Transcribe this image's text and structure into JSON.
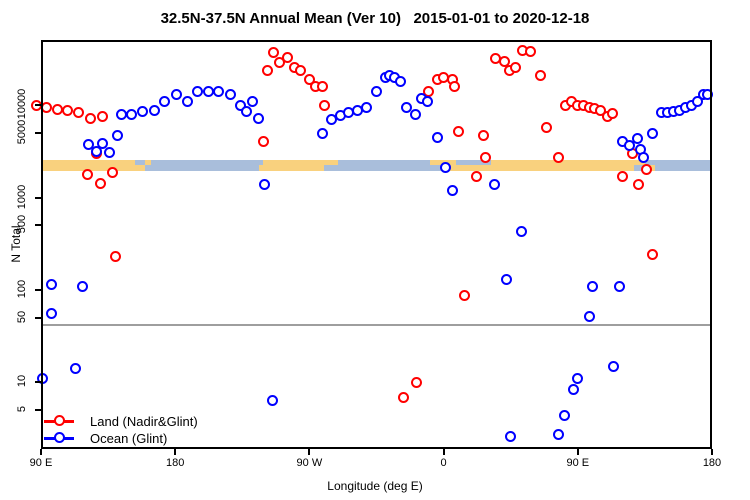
{
  "title": "32.5N-37.5N Annual Mean (Ver 10)   2015-01-01 to 2020-12-18",
  "axes": {
    "y_label": "N Total",
    "x_label": "Longitude (deg E)"
  },
  "legend": {
    "items": [
      {
        "series": "land",
        "label": "Land (Nadir&Glint)"
      },
      {
        "series": "ocean",
        "label": "Ocean (Glint)"
      }
    ]
  },
  "colors": {
    "land_marker": "#FF0000",
    "ocean_marker": "#0000FF",
    "strip_land": "#F9D17E",
    "strip_ocean": "#A9BEDB",
    "reference_line": "#9E9E9E"
  },
  "chart_data": {
    "type": "scatter",
    "title": "32.5N-37.5N Annual Mean (Ver 10)   2015-01-01 to 2020-12-18",
    "xlabel": "Longitude (deg E)",
    "ylabel": "N Total",
    "x_axis": {
      "range_deg_east": [
        90,
        540
      ],
      "ticks": [
        {
          "lon": 90,
          "label": "90 E"
        },
        {
          "lon": 180,
          "label": "180"
        },
        {
          "lon": 270,
          "label": "90 W"
        },
        {
          "lon": 360,
          "label": "0"
        },
        {
          "lon": 450,
          "label": "90 E"
        },
        {
          "lon": 540,
          "label": "180"
        }
      ]
    },
    "y_axis": {
      "scale": "log",
      "range": [
        2,
        60000
      ],
      "ticks": [
        {
          "v": 10000,
          "label": "10000"
        },
        {
          "v": 5000,
          "label": "5000"
        },
        {
          "v": 1000,
          "label": "1000"
        },
        {
          "v": 500,
          "label": "500"
        },
        {
          "v": 100,
          "label": "100"
        },
        {
          "v": 50,
          "label": "50"
        },
        {
          "v": 10,
          "label": "10"
        },
        {
          "v": 5,
          "label": "5"
        }
      ]
    },
    "reference_line": {
      "value": 42
    },
    "map_strip": {
      "description": "land/ocean strip at N~2200, top half=37.5N side, bottom half=32.5N side",
      "segments": [
        {
          "from": 90,
          "to": 153,
          "top": "land",
          "bottom": "land"
        },
        {
          "from": 153,
          "to": 160,
          "top": "ocean",
          "bottom": "land"
        },
        {
          "from": 160,
          "to": 164,
          "top": "land",
          "bottom": "ocean"
        },
        {
          "from": 164,
          "to": 236,
          "top": "ocean",
          "bottom": "ocean"
        },
        {
          "from": 236,
          "to": 239,
          "top": "ocean",
          "bottom": "land"
        },
        {
          "from": 239,
          "to": 280,
          "top": "land",
          "bottom": "land"
        },
        {
          "from": 280,
          "to": 289,
          "top": "land",
          "bottom": "ocean"
        },
        {
          "from": 289,
          "to": 351,
          "top": "ocean",
          "bottom": "ocean"
        },
        {
          "from": 351,
          "to": 361,
          "top": "land",
          "bottom": "ocean"
        },
        {
          "from": 361,
          "to": 368,
          "top": "land",
          "bottom": "land"
        },
        {
          "from": 368,
          "to": 392,
          "top": "ocean",
          "bottom": "land"
        },
        {
          "from": 392,
          "to": 488,
          "top": "land",
          "bottom": "land"
        },
        {
          "from": 488,
          "to": 495,
          "top": "land",
          "bottom": "ocean"
        },
        {
          "from": 495,
          "to": 502,
          "top": "ocean",
          "bottom": "land"
        },
        {
          "from": 502,
          "to": 540,
          "top": "ocean",
          "bottom": "ocean"
        }
      ]
    },
    "series": [
      {
        "name": "Land (Nadir&Glint)",
        "key": "land",
        "points": [
          [
            87,
            9900
          ],
          [
            94,
            9400
          ],
          [
            101,
            9100
          ],
          [
            108,
            8900
          ],
          [
            115,
            8400
          ],
          [
            123,
            7300
          ],
          [
            131,
            7600
          ],
          [
            127,
            3000
          ],
          [
            121,
            1780
          ],
          [
            130,
            1430
          ],
          [
            138,
            1870
          ],
          [
            140,
            230
          ],
          [
            239,
            4100
          ],
          [
            242,
            24000
          ],
          [
            246,
            37000
          ],
          [
            250,
            29000
          ],
          [
            255,
            33000
          ],
          [
            260,
            26000
          ],
          [
            264,
            24000
          ],
          [
            270,
            19000
          ],
          [
            274,
            16000
          ],
          [
            279,
            16000
          ],
          [
            280,
            9900
          ],
          [
            333,
            6.8
          ],
          [
            342,
            10
          ],
          [
            350,
            14000
          ],
          [
            356,
            19000
          ],
          [
            360,
            20000
          ],
          [
            366,
            19000
          ],
          [
            367,
            16000
          ],
          [
            370,
            5200
          ],
          [
            374,
            88
          ],
          [
            382,
            1700
          ],
          [
            387,
            4700
          ],
          [
            388,
            2700
          ],
          [
            395,
            32000
          ],
          [
            401,
            30000
          ],
          [
            404,
            24000
          ],
          [
            408,
            26000
          ],
          [
            413,
            39000
          ],
          [
            418,
            38000
          ],
          [
            425,
            21000
          ],
          [
            429,
            5700
          ],
          [
            437,
            2700
          ],
          [
            442,
            10000
          ],
          [
            446,
            11000
          ],
          [
            450,
            10000
          ],
          [
            454,
            9900
          ],
          [
            458,
            9400
          ],
          [
            461,
            9200
          ],
          [
            465,
            8700
          ],
          [
            470,
            7500
          ],
          [
            473,
            8100
          ],
          [
            480,
            1700
          ],
          [
            487,
            3000
          ],
          [
            491,
            1400
          ],
          [
            496,
            2000
          ],
          [
            500,
            240
          ]
        ]
      },
      {
        "name": "Ocean (Glint)",
        "key": "ocean",
        "points": [
          [
            91,
            11
          ],
          [
            97,
            56
          ],
          [
            97,
            115
          ],
          [
            113,
            14
          ],
          [
            118,
            110
          ],
          [
            122,
            3800
          ],
          [
            127,
            3200
          ],
          [
            131,
            3900
          ],
          [
            136,
            3100
          ],
          [
            141,
            4700
          ],
          [
            144,
            7900
          ],
          [
            151,
            7900
          ],
          [
            158,
            8500
          ],
          [
            166,
            8900
          ],
          [
            173,
            11000
          ],
          [
            181,
            13000
          ],
          [
            188,
            11000
          ],
          [
            195,
            14000
          ],
          [
            202,
            14000
          ],
          [
            209,
            14000
          ],
          [
            217,
            13000
          ],
          [
            224,
            9900
          ],
          [
            228,
            8600
          ],
          [
            232,
            11000
          ],
          [
            236,
            7300
          ],
          [
            240,
            1400
          ],
          [
            245,
            6.3
          ],
          [
            279,
            4900
          ],
          [
            285,
            7100
          ],
          [
            291,
            7700
          ],
          [
            296,
            8300
          ],
          [
            302,
            8900
          ],
          [
            308,
            9600
          ],
          [
            315,
            14000
          ],
          [
            321,
            20000
          ],
          [
            324,
            21000
          ],
          [
            327,
            20000
          ],
          [
            331,
            18000
          ],
          [
            335,
            9600
          ],
          [
            341,
            7900
          ],
          [
            345,
            12000
          ],
          [
            349,
            11000
          ],
          [
            356,
            4500
          ],
          [
            361,
            2100
          ],
          [
            366,
            1200
          ],
          [
            394,
            1400
          ],
          [
            402,
            130
          ],
          [
            405,
            2.6
          ],
          [
            412,
            430
          ],
          [
            437,
            2.7
          ],
          [
            441,
            4.4
          ],
          [
            447,
            8.3
          ],
          [
            450,
            11
          ],
          [
            458,
            52
          ],
          [
            460,
            108
          ],
          [
            474,
            15
          ],
          [
            478,
            110
          ],
          [
            480,
            4100
          ],
          [
            485,
            3700
          ],
          [
            490,
            4400
          ],
          [
            492,
            3300
          ],
          [
            494,
            2700
          ],
          [
            500,
            4900
          ],
          [
            506,
            8300
          ],
          [
            510,
            8300
          ],
          [
            514,
            8500
          ],
          [
            518,
            8900
          ],
          [
            522,
            9400
          ],
          [
            526,
            10000
          ],
          [
            530,
            11000
          ],
          [
            534,
            13000
          ],
          [
            537,
            13000
          ]
        ]
      }
    ]
  }
}
